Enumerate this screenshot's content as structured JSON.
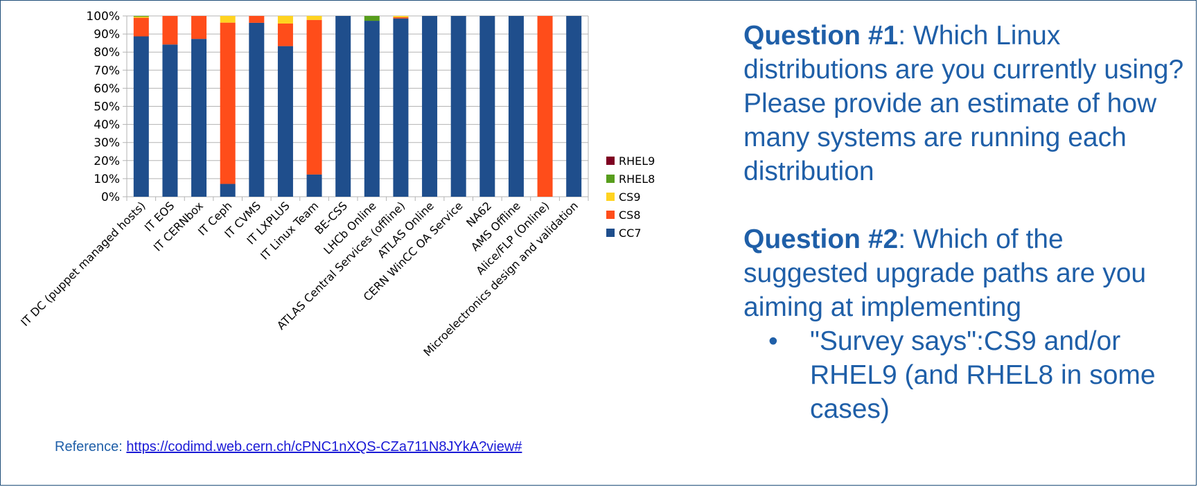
{
  "chart_data": {
    "type": "bar",
    "stacked": true,
    "title": "",
    "xlabel": "",
    "ylabel": "",
    "ylim": [
      0,
      100
    ],
    "y_ticks": [
      "0%",
      "10%",
      "20%",
      "30%",
      "40%",
      "50%",
      "60%",
      "70%",
      "80%",
      "90%",
      "100%"
    ],
    "grid": true,
    "legend_position": "right",
    "categories": [
      "IT DC (puppet managed hosts)",
      "IT EOS",
      "IT CERNbox",
      "IT Ceph",
      "IT CVMS",
      "IT LXPLUS",
      "IT Linux Team",
      "BE-CSS",
      "LHCb Online",
      "ATLAS Central Services (offline)",
      "ATLAS Online",
      "CERN WinCC OA Service",
      "NA62",
      "AMS Offline",
      "Alice/FLP (Online)",
      "Microelectronics design and validation"
    ],
    "series": [
      {
        "name": "CC7",
        "color": "#1f4e8c",
        "values": [
          88.7,
          84.2,
          87.3,
          7.1,
          96.2,
          83.3,
          12.3,
          100,
          97.3,
          98.6,
          100,
          100,
          100,
          100,
          0,
          100
        ]
      },
      {
        "name": "CS8",
        "color": "#ff4d1a",
        "values": [
          10.3,
          15.8,
          12.7,
          89.2,
          3.8,
          12.5,
          85.5,
          0,
          0,
          0.7,
          0,
          0,
          0,
          0,
          100,
          0
        ]
      },
      {
        "name": "CS9",
        "color": "#ffd320",
        "values": [
          0.6,
          0,
          0,
          3.7,
          0,
          4.2,
          2.2,
          0,
          0,
          0.7,
          0,
          0,
          0,
          0,
          0,
          0
        ]
      },
      {
        "name": "RHEL8",
        "color": "#579d1c",
        "values": [
          0.4,
          0,
          0,
          0,
          0,
          0,
          0,
          0,
          2.7,
          0,
          0,
          0,
          0,
          0,
          0,
          0
        ]
      },
      {
        "name": "RHEL9",
        "color": "#7e0021",
        "values": [
          0,
          0,
          0,
          0,
          0,
          0,
          0,
          0,
          0,
          0,
          0,
          0,
          0,
          0,
          0,
          0
        ]
      }
    ],
    "legend_order": [
      "RHEL9",
      "RHEL8",
      "CS9",
      "CS8",
      "CC7"
    ]
  },
  "questions": {
    "q1": {
      "title": "Question #1",
      "text": ": Which Linux distributions are you currently using? Please provide an estimate of how many systems are running each distribution"
    },
    "q2": {
      "title": "Question #2",
      "text": ": Which of the suggested upgrade paths are you aiming at implementing"
    },
    "bullet_glyph": "•",
    "bullet": "\"Survey says\":CS9 and/or RHEL9 (and RHEL8 in some cases)"
  },
  "reference": {
    "label": "Reference:",
    "url": "https://codimd.web.cern.ch/cPNC1nXQS-CZa711N8JYkA?view#"
  }
}
